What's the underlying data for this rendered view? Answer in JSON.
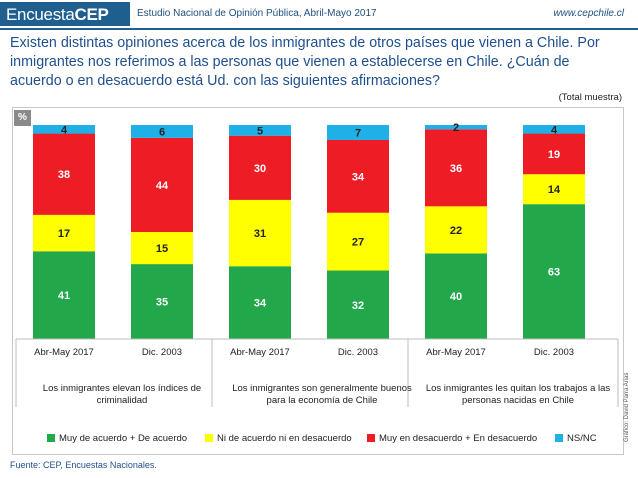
{
  "header": {
    "brand_plain": "Encuesta",
    "brand_bold": "CEP",
    "study": "Estudio Nacional de Opinión Pública, Abril-Mayo 2017",
    "website": "www.cepchile.cl"
  },
  "question": "Existen distintas opiniones acerca de los inmigrantes de otros países que vienen a Chile. Por inmigrantes nos referimos a las personas que vienen a establecerse en Chile. ¿Cuán de acuerdo o en desacuerdo está Ud. con las siguientes afirmaciones?",
  "base_note": "(Total muestra)",
  "percent_tag": "%",
  "footer": {
    "source": "Fuente: CEP, Encuestas Nacionales.",
    "credit": "Gráfico: David Parra Arias"
  },
  "colors": {
    "agree": "#22a84a",
    "neutral": "#ffff00",
    "disagree": "#ee1c25",
    "nsnc": "#1fb0e8"
  },
  "chart_data": {
    "type": "bar",
    "stacked": true,
    "unit": "%",
    "ylim": [
      0,
      100
    ],
    "groups": [
      "Los inmigrantes elevan los índices de criminalidad",
      "Los inmigrantes son generalmente buenos para la economía de Chile",
      "Los inmigrantes les quitan los trabajos a las personas nacidas en Chile"
    ],
    "categories": [
      "Abr-May 2017",
      "Dic. 2003",
      "Abr-May 2017",
      "Dic. 2003",
      "Abr-May 2017",
      "Dic. 2003"
    ],
    "series": [
      {
        "name": "Muy de acuerdo + De acuerdo",
        "values": [
          41,
          35,
          34,
          32,
          40,
          63
        ]
      },
      {
        "name": "Ni de acuerdo ni en desacuerdo",
        "values": [
          17,
          15,
          31,
          27,
          22,
          14
        ]
      },
      {
        "name": "Muy en desacuerdo + En desacuerdo",
        "values": [
          38,
          44,
          30,
          34,
          36,
          19
        ]
      },
      {
        "name": "NS/NC",
        "values": [
          4,
          6,
          5,
          7,
          2,
          4
        ]
      }
    ],
    "legend_position": "bottom",
    "grid": false
  }
}
